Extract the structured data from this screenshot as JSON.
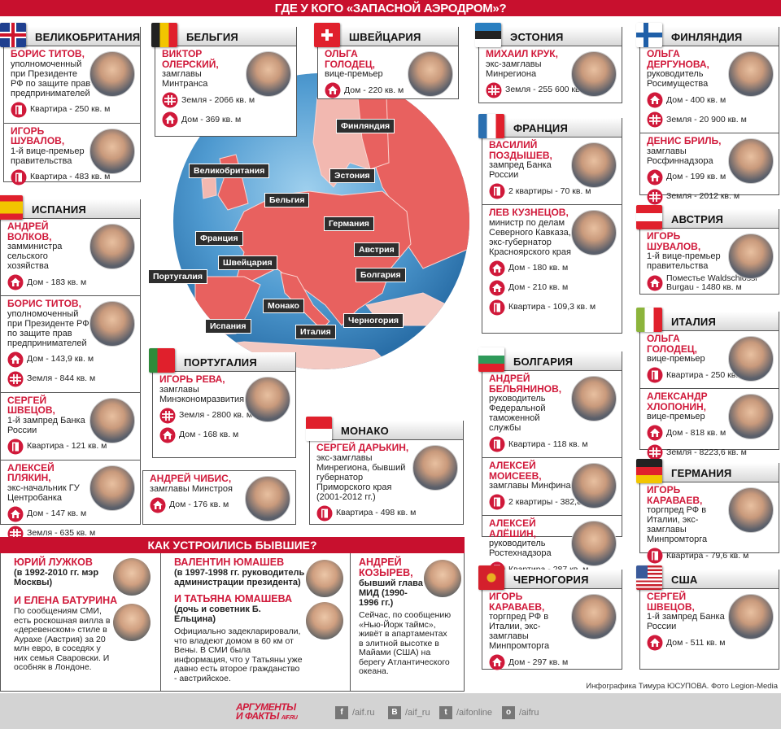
{
  "title": "ГДЕ У КОГО «ЗАПАСНОЙ АЭРОДРОМ»?",
  "colors": {
    "accent": "#c8102e",
    "name": "#d0193a",
    "land": "#e8615f",
    "sea": "#4a90c8"
  },
  "map": {
    "labels": [
      "Финляндия",
      "Великобритания",
      "Эстония",
      "Бельгия",
      "Германия",
      "Франция",
      "Австрия",
      "Швейцария",
      "Португалия",
      "Болгария",
      "Монако",
      "Испания",
      "Италия",
      "Черногория"
    ]
  },
  "countries": [
    {
      "title": "ВЕЛИКОБРИТАНИЯ",
      "flag": {
        "dir": "uk",
        "colors": [
          "#1f3f8f",
          "#ffffff",
          "#cf142b"
        ]
      },
      "people": [
        {
          "name": "БОРИС ТИТОВ,",
          "role": "уполномоченный при Президенте РФ по защите прав предпринимателей",
          "items": [
            {
              "icon": "flat",
              "text": "Квартира - 250 кв. м"
            }
          ]
        },
        {
          "name": "ИГОРЬ ШУВАЛОВ,",
          "role": "1-й вице-премьер правительства",
          "items": [
            {
              "icon": "flat",
              "text": "Квартира - 483 кв. м"
            }
          ]
        }
      ]
    },
    {
      "title": "БЕЛЬГИЯ",
      "flag": {
        "dir": "v",
        "colors": [
          "#222222",
          "#f2c500",
          "#e0202c"
        ]
      },
      "people": [
        {
          "name": "ВИКТОР ОЛЕРСКИЙ,",
          "role": "замглавы Минтранса",
          "items": [
            {
              "icon": "land",
              "text": "Земля - 2066 кв. м"
            },
            {
              "icon": "house",
              "text": "Дом - 369 кв. м"
            }
          ]
        }
      ]
    },
    {
      "title": "ШВЕЙЦАРИЯ",
      "flag": {
        "dir": "swiss",
        "colors": [
          "#e0202c",
          "#ffffff"
        ]
      },
      "people": [
        {
          "name": "ОЛЬГА ГОЛОДЕЦ,",
          "role": "вице-премьер",
          "items": [
            {
              "icon": "house",
              "text": "Дом - 220 кв. м"
            }
          ]
        }
      ]
    },
    {
      "title": "ЭСТОНИЯ",
      "flag": {
        "dir": "h",
        "colors": [
          "#2a7fc0",
          "#222222",
          "#ffffff"
        ]
      },
      "people": [
        {
          "name": "МИХАИЛ КРУК,",
          "role": "экс-замглавы Минрегиона",
          "items": [
            {
              "icon": "land",
              "text": "Земля - 255 600 кв. м"
            }
          ]
        }
      ]
    },
    {
      "title": "ФИНЛЯНДИЯ",
      "flag": {
        "dir": "nordic",
        "colors": [
          "#ffffff",
          "#1f5fa8"
        ]
      },
      "people": [
        {
          "name": "ОЛЬГА ДЕРГУНОВА,",
          "role": "руководитель Росимущества",
          "items": [
            {
              "icon": "house",
              "text": "Дом - 400 кв. м"
            },
            {
              "icon": "land",
              "text": "Земля - 20 900 кв. м"
            }
          ]
        },
        {
          "name": "ДЕНИС БРИЛЬ,",
          "role": "замглавы Росфиннадзора",
          "items": [
            {
              "icon": "house",
              "text": "Дом - 199 кв. м"
            },
            {
              "icon": "land",
              "text": "Земля - 2012 кв. м"
            }
          ]
        }
      ]
    },
    {
      "title": "ФРАНЦИЯ",
      "flag": {
        "dir": "v",
        "colors": [
          "#2a6fb0",
          "#ffffff",
          "#e0202c"
        ]
      },
      "people": [
        {
          "name": "ВАСИЛИЙ ПОЗДЫШЕВ,",
          "role": "зампред Банка России",
          "items": [
            {
              "icon": "flat",
              "text": "2 квартиры - 70 кв. м"
            }
          ]
        },
        {
          "name": "ЛЕВ КУЗНЕЦОВ,",
          "role": "министр по делам Северного Кавказа, экс-губернатор Красноярского края",
          "items": [
            {
              "icon": "house",
              "text": "Дом - 180 кв. м"
            },
            {
              "icon": "house",
              "text": "Дом - 210 кв. м"
            },
            {
              "icon": "flat",
              "text": "Квартира - 109,3 кв. м"
            }
          ]
        }
      ]
    },
    {
      "title": "АВСТРИЯ",
      "flag": {
        "dir": "h",
        "colors": [
          "#e0202c",
          "#ffffff",
          "#e0202c"
        ]
      },
      "people": [
        {
          "name": "ИГОРЬ ШУВАЛОВ,",
          "role": "1-й вице-премьер правительства",
          "items": [
            {
              "icon": "house",
              "text": "Поместье Waldschlossl Burgau - 1480 кв. м"
            }
          ]
        }
      ]
    },
    {
      "title": "ИТАЛИЯ",
      "flag": {
        "dir": "v",
        "colors": [
          "#8cb43c",
          "#ffffff",
          "#e0202c"
        ]
      },
      "people": [
        {
          "name": "ОЛЬГА ГОЛОДЕЦ,",
          "role": "вице-премьер",
          "items": [
            {
              "icon": "flat",
              "text": "Квартира - 250 кв. м"
            }
          ]
        },
        {
          "name": "АЛЕКСАНДР ХЛОПОНИН,",
          "role": "вице-премьер",
          "items": [
            {
              "icon": "house",
              "text": "Дом - 818 кв. м"
            },
            {
              "icon": "land",
              "text": "Земля - 8223,6 кв. м"
            }
          ]
        }
      ]
    },
    {
      "title": "ГЕРМАНИЯ",
      "flag": {
        "dir": "h",
        "colors": [
          "#222222",
          "#e0202c",
          "#f2c500"
        ]
      },
      "people": [
        {
          "name": "ИГОРЬ КАРАВАЕВ,",
          "role": "торгпред РФ в Италии, экс-замглавы Минпромторга",
          "items": [
            {
              "icon": "flat",
              "text": "Квартира - 79,6 кв. м"
            }
          ]
        }
      ]
    },
    {
      "title": "ИСПАНИЯ",
      "flag": {
        "dir": "h",
        "colors": [
          "#e0202c",
          "#f2c500",
          "#f2c500",
          "#e0202c"
        ]
      },
      "people": [
        {
          "name": "АНДРЕЙ ВОЛКОВ,",
          "role": "замминистра сельского хозяйства",
          "items": [
            {
              "icon": "house",
              "text": "Дом - 183 кв. м"
            }
          ]
        },
        {
          "name": "БОРИС ТИТОВ,",
          "role": "уполномоченный при Президенте РФ по защите прав предпринимателей",
          "items": [
            {
              "icon": "house",
              "text": "Дом - 143,9 кв. м"
            },
            {
              "icon": "land",
              "text": "Земля - 844 кв. м"
            }
          ]
        },
        {
          "name": "СЕРГЕЙ ШВЕЦОВ,",
          "role": "1-й зампред Банка России",
          "items": [
            {
              "icon": "flat",
              "text": "Квартира - 121 кв. м"
            }
          ]
        },
        {
          "name": "АЛЕКСЕЙ ПЛЯКИН,",
          "role": "экс-начальник ГУ Центробанка",
          "items": [
            {
              "icon": "house",
              "text": "Дом - 147 кв. м"
            },
            {
              "icon": "land",
              "text": "Земля - 635 кв. м"
            }
          ]
        }
      ]
    },
    {
      "title": "ПОРТУГАЛИЯ",
      "flag": {
        "dir": "v",
        "colors": [
          "#2e8b3a",
          "#e0202c",
          "#e0202c"
        ]
      },
      "people": [
        {
          "name": "ИГОРЬ РЕВА,",
          "role": "замглавы Минэкономразвития",
          "items": [
            {
              "icon": "land",
              "text": "Земля - 2800 кв. м"
            },
            {
              "icon": "house",
              "text": "Дом - 168 кв. м"
            }
          ]
        }
      ]
    },
    {
      "title": "",
      "people": [
        {
          "name": "АНДРЕЙ ЧИБИС,",
          "role": "замглавы Минстроя",
          "items": [
            {
              "icon": "house",
              "text": "Дом - 176 кв. м"
            }
          ]
        }
      ]
    },
    {
      "title": "МОНАКО",
      "flag": {
        "dir": "h",
        "colors": [
          "#e0202c",
          "#ffffff"
        ]
      },
      "people": [
        {
          "name": "СЕРГЕЙ ДАРЬКИН,",
          "role": "экс-замглавы Минрегиона, бывший губернатор Приморского края (2001-2012 гг.)",
          "items": [
            {
              "icon": "flat",
              "text": "Квартира - 498 кв. м"
            }
          ]
        }
      ]
    },
    {
      "title": "БОЛГАРИЯ",
      "flag": {
        "dir": "h",
        "colors": [
          "#ffffff",
          "#2e9a5a",
          "#e0202c"
        ]
      },
      "people": [
        {
          "name": "АНДРЕЙ БЕЛЬЯНИНОВ,",
          "role": "руководитель Федеральной таможенной службы",
          "items": [
            {
              "icon": "flat",
              "text": "Квартира - 118 кв. м"
            }
          ]
        },
        {
          "name": "АЛЕКСЕЙ МОИСЕЕВ,",
          "role": "замглавы Минфина",
          "items": [
            {
              "icon": "flat",
              "text": "2 квартиры - 382,8 кв. м"
            }
          ]
        },
        {
          "name": "АЛЕКСЕЙ АЛЁШИН,",
          "role": "руководитель Ростехнадзора",
          "items": [
            {
              "icon": "flat",
              "text": "Квартира - 287 кв. м"
            }
          ]
        }
      ]
    },
    {
      "title": "ЧЕРНОГОРИЯ",
      "flag": {
        "dir": "mne",
        "colors": [
          "#d4202c",
          "#e8b020"
        ]
      },
      "people": [
        {
          "name": "ИГОРЬ КАРАВАЕВ,",
          "role": "торгпред РФ в Италии, экс-замглавы Минпромторга",
          "items": [
            {
              "icon": "house",
              "text": "Дом - 297 кв. м"
            }
          ]
        }
      ]
    },
    {
      "title": "США",
      "flag": {
        "dir": "usa",
        "colors": [
          "#c8202c",
          "#ffffff",
          "#3a5a9a"
        ]
      },
      "people": [
        {
          "name": "СЕРГЕЙ ШВЕЦОВ,",
          "role": "1-й зампред Банка России",
          "items": [
            {
              "icon": "house",
              "text": "Дом - 511 кв. м"
            }
          ]
        }
      ]
    }
  ],
  "former": {
    "title": "КАК УСТРОИЛИСЬ БЫВШИЕ?",
    "luzhkov": {
      "name": "ЮРИЙ  ЛУЖКОВ",
      "sub": "(в 1992-2010 гг. мэр Москвы)",
      "name2": "И ЕЛЕНА БАТУРИНА",
      "text": "По сообщениям СМИ, есть роскошная вилла в «деревенском» стиле в Аурахе (Австрия) за 20 млн евро, в соседях у них семья Сваровски. И особняк в Лондоне."
    },
    "yumashev": {
      "name": "ВАЛЕНТИН ЮМАШЕВ",
      "sub": "(в 1997-1998 гг. руководитель администрации президента)",
      "name2": "И ТАТЬЯНА ЮМАШЕВА",
      "sub2": "(дочь и советник Б. Ельцина)",
      "text": "Официально задекларировали, что владеют домом в 60 км от Вены. В СМИ была информация, что у Татьяны уже давно есть второе гражданство - австрийское."
    },
    "kozyrev": {
      "name": "АНДРЕЙ КОЗЫРЕВ,",
      "sub": "бывший глава МИД (1990-1996 гг.)",
      "text": "Сейчас, по сообщению «Нью-Йорк таймс», живёт в апартаментах в элитной высотке в Майами (США) на берегу Атлантического океана."
    }
  },
  "credits": "Инфографика Тимура ЮСУПОВА. Фото Legion-Media",
  "footer": {
    "logo_line1": "АРГУМЕНТЫ",
    "logo_line2": "И ФАКТЫ",
    "logo_site": "AIF.RU",
    "social": [
      {
        "icon": "facebook-icon",
        "glyph": "f",
        "label": "/aif.ru"
      },
      {
        "icon": "vk-icon",
        "glyph": "В",
        "label": "/aif_ru"
      },
      {
        "icon": "twitter-icon",
        "glyph": "t",
        "label": "/aifonline"
      },
      {
        "icon": "odnoklassniki-icon",
        "glyph": "о",
        "label": "/aifru"
      }
    ]
  }
}
